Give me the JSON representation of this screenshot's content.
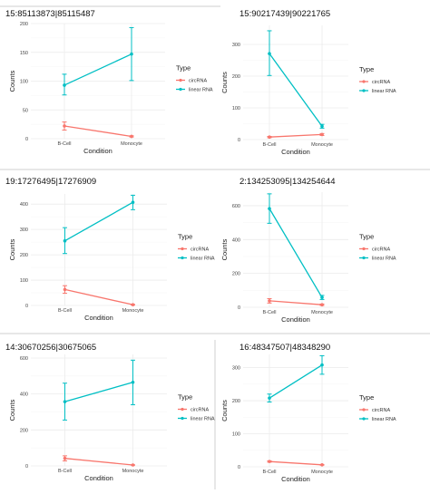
{
  "colors": {
    "circRNA": "#f8766d",
    "linear RNA": "#00bfc4"
  },
  "chart_data": [
    {
      "type": "line",
      "title": "15:85113873|85115487",
      "xlabel": "Condition",
      "ylabel": "Counts",
      "categories": [
        "B-Cell",
        "Monocyte"
      ],
      "ylim": [
        0,
        200
      ],
      "yticks": [
        0,
        50,
        100,
        150,
        200
      ],
      "legend_title": "Type",
      "legend_position": "right",
      "grid": true,
      "series": [
        {
          "name": "circRNA",
          "values": [
            22,
            4
          ],
          "err_low": [
            15,
            3
          ],
          "err_high": [
            29,
            5
          ]
        },
        {
          "name": "linear RNA",
          "values": [
            93,
            147
          ],
          "err_low": [
            76,
            101
          ],
          "err_high": [
            112,
            193
          ]
        }
      ]
    },
    {
      "type": "line",
      "title": "15:90217439|90221765",
      "xlabel": "Condition",
      "ylabel": "Counts",
      "categories": [
        "B-Cell",
        "Monocyte"
      ],
      "ylim": [
        0,
        360
      ],
      "yticks": [
        0,
        100,
        200,
        300
      ],
      "legend_title": "Type",
      "legend_position": "right",
      "grid": true,
      "series": [
        {
          "name": "circRNA",
          "values": [
            8,
            16
          ],
          "err_low": [
            6,
            13
          ],
          "err_high": [
            10,
            19
          ]
        },
        {
          "name": "linear RNA",
          "values": [
            271,
            42
          ],
          "err_low": [
            202,
            36
          ],
          "err_high": [
            343,
            48
          ]
        }
      ]
    },
    {
      "type": "line",
      "title": "19:17276495|17276909",
      "xlabel": "Condition",
      "ylabel": "Counts",
      "categories": [
        "B-Cell",
        "Monocyte"
      ],
      "ylim": [
        0,
        440
      ],
      "yticks": [
        0,
        100,
        200,
        300,
        400
      ],
      "legend_title": "Type",
      "legend_position": "right",
      "grid": true,
      "series": [
        {
          "name": "circRNA",
          "values": [
            63,
            3
          ],
          "err_low": [
            48,
            2
          ],
          "err_high": [
            78,
            4
          ]
        },
        {
          "name": "linear RNA",
          "values": [
            255,
            407
          ],
          "err_low": [
            205,
            378
          ],
          "err_high": [
            307,
            435
          ]
        }
      ]
    },
    {
      "type": "line",
      "title": "2:134253095|134254644",
      "xlabel": "Condition",
      "ylabel": "Counts",
      "categories": [
        "B-Cell",
        "Monocyte"
      ],
      "ylim": [
        0,
        680
      ],
      "yticks": [
        0,
        200,
        400,
        600
      ],
      "legend_title": "Type",
      "legend_position": "right",
      "grid": true,
      "series": [
        {
          "name": "circRNA",
          "values": [
            38,
            15
          ],
          "err_low": [
            25,
            11
          ],
          "err_high": [
            51,
            19
          ]
        },
        {
          "name": "linear RNA",
          "values": [
            583,
            58
          ],
          "err_low": [
            496,
            46
          ],
          "err_high": [
            670,
            70
          ]
        }
      ]
    },
    {
      "type": "line",
      "title": "14:30670256|30675065",
      "xlabel": "Condition",
      "ylabel": "Counts",
      "categories": [
        "B-Cell",
        "Monocyte"
      ],
      "ylim": [
        0,
        620
      ],
      "yticks": [
        0,
        200,
        400,
        600
      ],
      "legend_title": "Type",
      "legend_position": "right",
      "grid": true,
      "series": [
        {
          "name": "circRNA",
          "values": [
            42,
            5
          ],
          "err_low": [
            28,
            4
          ],
          "err_high": [
            56,
            6
          ]
        },
        {
          "name": "linear RNA",
          "values": [
            357,
            465
          ],
          "err_low": [
            255,
            340
          ],
          "err_high": [
            460,
            588
          ]
        }
      ]
    },
    {
      "type": "line",
      "title": "16:48347507|48348290",
      "xlabel": "Condition",
      "ylabel": "Counts",
      "categories": [
        "B-Cell",
        "Monocyte"
      ],
      "ylim": [
        0,
        340
      ],
      "yticks": [
        0,
        100,
        200,
        300
      ],
      "legend_title": "Type",
      "legend_position": "right",
      "grid": true,
      "series": [
        {
          "name": "circRNA",
          "values": [
            16,
            6
          ],
          "err_low": [
            14,
            5
          ],
          "err_high": [
            18,
            7
          ]
        },
        {
          "name": "linear RNA",
          "values": [
            208,
            308
          ],
          "err_low": [
            196,
            280
          ],
          "err_high": [
            220,
            336
          ]
        }
      ]
    }
  ]
}
